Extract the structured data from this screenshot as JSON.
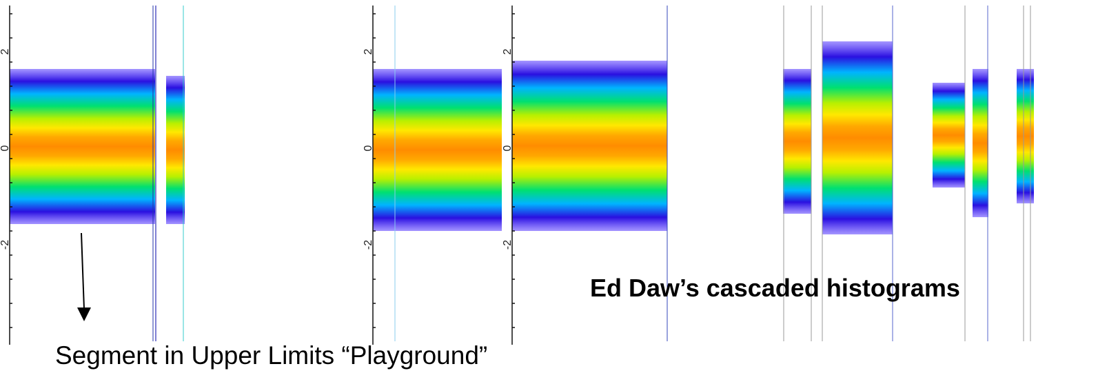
{
  "caption": "Ed Daw’s cascaded histograms",
  "arrow_label": "Segment in Upper Limits “Playground”",
  "axis_labels": [
    "2",
    "0",
    "-2"
  ]
}
